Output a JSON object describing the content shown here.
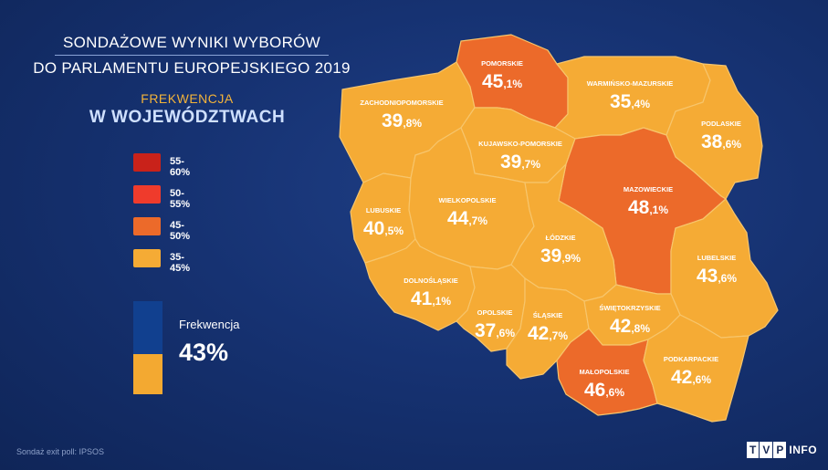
{
  "title": {
    "line1": "SONDAŻOWE WYNIKI WYBORÓW",
    "line2": "DO PARLAMENTU EUROPEJSKIEGO 2019"
  },
  "subtitle": {
    "line1": "FREKWENCJA",
    "line2": "W WOJEWÓDZTWACH"
  },
  "legend": [
    {
      "label": "55-60%",
      "color": "#c9221a"
    },
    {
      "label": "50-55%",
      "color": "#ef3b2c"
    },
    {
      "label": "45-50%",
      "color": "#ec6a2a"
    },
    {
      "label": "35-45%",
      "color": "#f5ab35"
    }
  ],
  "colors": {
    "low": "#f5ab35",
    "mid": "#ec6a2a",
    "border": "#f7c56b"
  },
  "turnout": {
    "label": "Frekwencja",
    "value": "43%",
    "fraction": 0.43
  },
  "regions": [
    {
      "id": "zachodniopomorskie",
      "name": "ZACHODNIOPOMORSKIE",
      "int": "39",
      "dec": ",8%",
      "value": 39.8
    },
    {
      "id": "pomorskie",
      "name": "POMORSKIE",
      "int": "45",
      "dec": ",1%",
      "value": 45.1
    },
    {
      "id": "warminsko-mazurskie",
      "name": "WARMIŃSKO-MAZURSKIE",
      "int": "35",
      "dec": ",4%",
      "value": 35.4
    },
    {
      "id": "podlaskie",
      "name": "PODLASKIE",
      "int": "38",
      "dec": ",6%",
      "value": 38.6
    },
    {
      "id": "kujawsko-pomorskie",
      "name": "KUJAWSKO-POMORSKIE",
      "int": "39",
      "dec": ",7%",
      "value": 39.7
    },
    {
      "id": "lubuskie",
      "name": "LUBUSKIE",
      "int": "40",
      "dec": ",5%",
      "value": 40.5
    },
    {
      "id": "wielkopolskie",
      "name": "WIELKOPOLSKIE",
      "int": "44",
      "dec": ",7%",
      "value": 44.7
    },
    {
      "id": "mazowieckie",
      "name": "MAZOWIECKIE",
      "int": "48",
      "dec": ",1%",
      "value": 48.1
    },
    {
      "id": "lodzkie",
      "name": "ŁÓDZKIE",
      "int": "39",
      "dec": ",9%",
      "value": 39.9
    },
    {
      "id": "lubelskie",
      "name": "LUBELSKIE",
      "int": "43",
      "dec": ",6%",
      "value": 43.6
    },
    {
      "id": "dolnoslaskie",
      "name": "DOLNOŚLĄSKIE",
      "int": "41",
      "dec": ",1%",
      "value": 41.1
    },
    {
      "id": "opolskie",
      "name": "OPOLSKIE",
      "int": "37",
      "dec": ",6%",
      "value": 37.6
    },
    {
      "id": "slaskie",
      "name": "ŚLĄSKIE",
      "int": "42",
      "dec": ",7%",
      "value": 42.7
    },
    {
      "id": "swietokrzyskie",
      "name": "ŚWIĘTOKRZYSKIE",
      "int": "42",
      "dec": ",8%",
      "value": 42.8
    },
    {
      "id": "malopolskie",
      "name": "MAŁOPOLSKIE",
      "int": "46",
      "dec": ",6%",
      "value": 46.6
    },
    {
      "id": "podkarpackie",
      "name": "PODKARPACKIE",
      "int": "42",
      "dec": ",6%",
      "value": 42.6
    }
  ],
  "source": "Sondaż exit poll: IPSOS",
  "logo": {
    "letters": [
      "T",
      "V",
      "P"
    ],
    "suffix": "INFO"
  }
}
